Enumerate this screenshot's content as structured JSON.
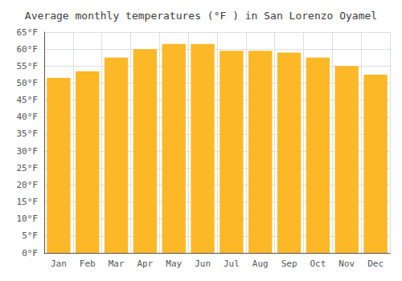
{
  "chart_data": {
    "type": "bar",
    "title": "Average monthly temperatures (°F ) in San Lorenzo Oyamel",
    "categories": [
      "Jan",
      "Feb",
      "Mar",
      "Apr",
      "May",
      "Jun",
      "Jul",
      "Aug",
      "Sep",
      "Oct",
      "Nov",
      "Dec"
    ],
    "values": [
      51.5,
      53.5,
      57.5,
      60.0,
      61.5,
      61.5,
      59.5,
      59.5,
      59.0,
      57.5,
      55.0,
      52.5
    ],
    "color": "#FDB827",
    "ylim": [
      0,
      65
    ],
    "yticks": [
      {
        "value": 0,
        "label": "0°F"
      },
      {
        "value": 5,
        "label": "5°F"
      },
      {
        "value": 10,
        "label": "10°F"
      },
      {
        "value": 15,
        "label": "15°F"
      },
      {
        "value": 20,
        "label": "20°F"
      },
      {
        "value": 25,
        "label": "25°F"
      },
      {
        "value": 30,
        "label": "30°F"
      },
      {
        "value": 35,
        "label": "35°F"
      },
      {
        "value": 40,
        "label": "40°F"
      },
      {
        "value": 45,
        "label": "45°F"
      },
      {
        "value": 50,
        "label": "50°F"
      },
      {
        "value": 55,
        "label": "55°F"
      },
      {
        "value": 60,
        "label": "60°F"
      },
      {
        "value": 65,
        "label": "65°F"
      }
    ],
    "grid": true
  }
}
